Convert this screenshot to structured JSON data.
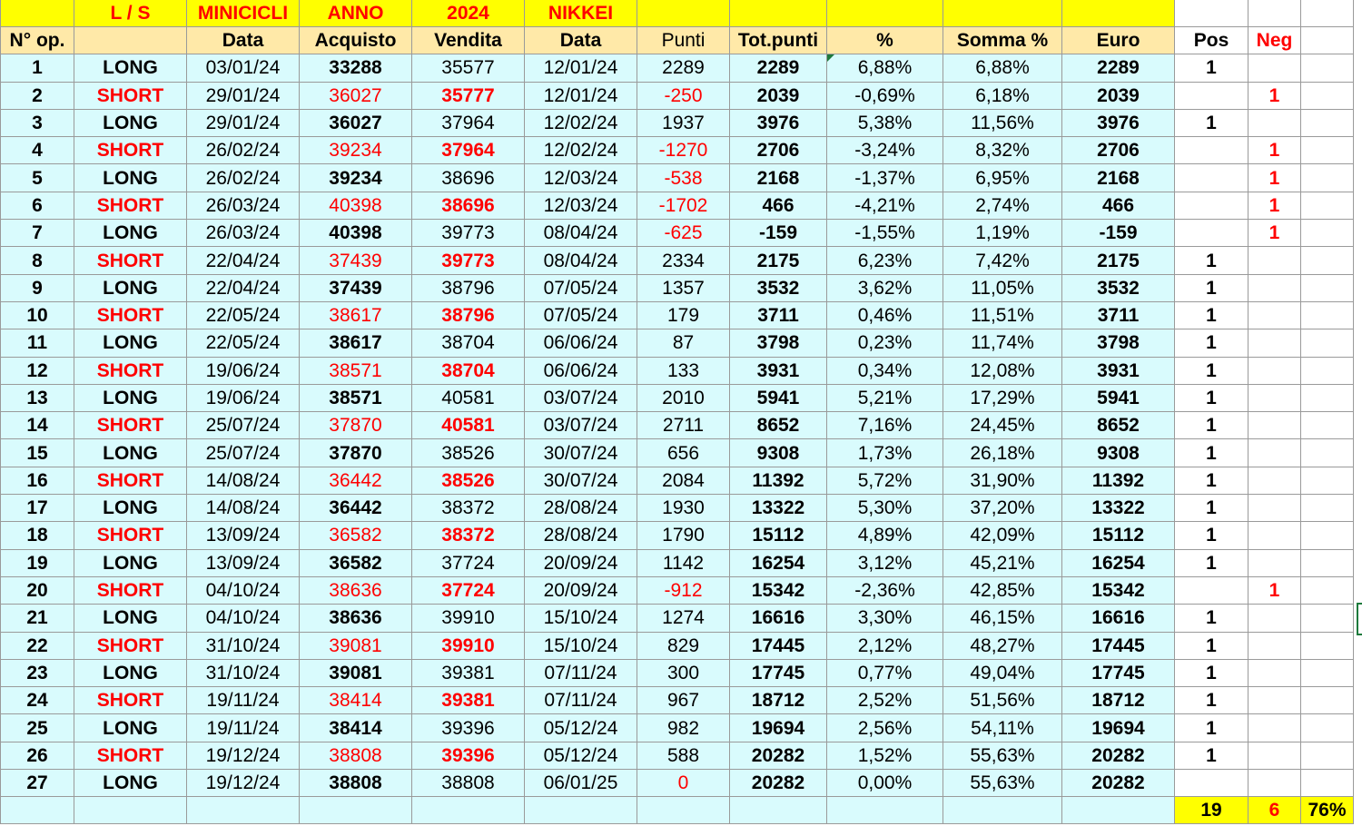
{
  "top_labels": [
    "L / S",
    "MINICICLI",
    "ANNO",
    "2024",
    "NIKKEI"
  ],
  "headers": [
    "N° op.",
    "",
    "Data",
    "Acquisto",
    "Vendita",
    "Data",
    "Punti",
    "Tot.punti",
    "%",
    "Somma %",
    "Euro",
    "Pos",
    "Neg"
  ],
  "rows": [
    [
      "1",
      "LONG",
      "03/01/24",
      "33288",
      "35577",
      "12/01/24",
      "2289",
      "2289",
      "6,88%",
      "6,88%",
      "2289",
      "1",
      ""
    ],
    [
      "2",
      "SHORT",
      "29/01/24",
      "36027",
      "35777",
      "12/01/24",
      "-250",
      "2039",
      "-0,69%",
      "6,18%",
      "2039",
      "",
      "1"
    ],
    [
      "3",
      "LONG",
      "29/01/24",
      "36027",
      "37964",
      "12/02/24",
      "1937",
      "3976",
      "5,38%",
      "11,56%",
      "3976",
      "1",
      ""
    ],
    [
      "4",
      "SHORT",
      "26/02/24",
      "39234",
      "37964",
      "12/02/24",
      "-1270",
      "2706",
      "-3,24%",
      "8,32%",
      "2706",
      "",
      "1"
    ],
    [
      "5",
      "LONG",
      "26/02/24",
      "39234",
      "38696",
      "12/03/24",
      "-538",
      "2168",
      "-1,37%",
      "6,95%",
      "2168",
      "",
      "1"
    ],
    [
      "6",
      "SHORT",
      "26/03/24",
      "40398",
      "38696",
      "12/03/24",
      "-1702",
      "466",
      "-4,21%",
      "2,74%",
      "466",
      "",
      "1"
    ],
    [
      "7",
      "LONG",
      "26/03/24",
      "40398",
      "39773",
      "08/04/24",
      "-625",
      "-159",
      "-1,55%",
      "1,19%",
      "-159",
      "",
      "1"
    ],
    [
      "8",
      "SHORT",
      "22/04/24",
      "37439",
      "39773",
      "08/04/24",
      "2334",
      "2175",
      "6,23%",
      "7,42%",
      "2175",
      "1",
      ""
    ],
    [
      "9",
      "LONG",
      "22/04/24",
      "37439",
      "38796",
      "07/05/24",
      "1357",
      "3532",
      "3,62%",
      "11,05%",
      "3532",
      "1",
      ""
    ],
    [
      "10",
      "SHORT",
      "22/05/24",
      "38617",
      "38796",
      "07/05/24",
      "179",
      "3711",
      "0,46%",
      "11,51%",
      "3711",
      "1",
      ""
    ],
    [
      "11",
      "LONG",
      "22/05/24",
      "38617",
      "38704",
      "06/06/24",
      "87",
      "3798",
      "0,23%",
      "11,74%",
      "3798",
      "1",
      ""
    ],
    [
      "12",
      "SHORT",
      "19/06/24",
      "38571",
      "38704",
      "06/06/24",
      "133",
      "3931",
      "0,34%",
      "12,08%",
      "3931",
      "1",
      ""
    ],
    [
      "13",
      "LONG",
      "19/06/24",
      "38571",
      "40581",
      "03/07/24",
      "2010",
      "5941",
      "5,21%",
      "17,29%",
      "5941",
      "1",
      ""
    ],
    [
      "14",
      "SHORT",
      "25/07/24",
      "37870",
      "40581",
      "03/07/24",
      "2711",
      "8652",
      "7,16%",
      "24,45%",
      "8652",
      "1",
      ""
    ],
    [
      "15",
      "LONG",
      "25/07/24",
      "37870",
      "38526",
      "30/07/24",
      "656",
      "9308",
      "1,73%",
      "26,18%",
      "9308",
      "1",
      ""
    ],
    [
      "16",
      "SHORT",
      "14/08/24",
      "36442",
      "38526",
      "30/07/24",
      "2084",
      "11392",
      "5,72%",
      "31,90%",
      "11392",
      "1",
      ""
    ],
    [
      "17",
      "LONG",
      "14/08/24",
      "36442",
      "38372",
      "28/08/24",
      "1930",
      "13322",
      "5,30%",
      "37,20%",
      "13322",
      "1",
      ""
    ],
    [
      "18",
      "SHORT",
      "13/09/24",
      "36582",
      "38372",
      "28/08/24",
      "1790",
      "15112",
      "4,89%",
      "42,09%",
      "15112",
      "1",
      ""
    ],
    [
      "19",
      "LONG",
      "13/09/24",
      "36582",
      "37724",
      "20/09/24",
      "1142",
      "16254",
      "3,12%",
      "45,21%",
      "16254",
      "1",
      ""
    ],
    [
      "20",
      "SHORT",
      "04/10/24",
      "38636",
      "37724",
      "20/09/24",
      "-912",
      "15342",
      "-2,36%",
      "42,85%",
      "15342",
      "",
      "1"
    ],
    [
      "21",
      "LONG",
      "04/10/24",
      "38636",
      "39910",
      "15/10/24",
      "1274",
      "16616",
      "3,30%",
      "46,15%",
      "16616",
      "1",
      ""
    ],
    [
      "22",
      "SHORT",
      "31/10/24",
      "39081",
      "39910",
      "15/10/24",
      "829",
      "17445",
      "2,12%",
      "48,27%",
      "17445",
      "1",
      ""
    ],
    [
      "23",
      "LONG",
      "31/10/24",
      "39081",
      "39381",
      "07/11/24",
      "300",
      "17745",
      "0,77%",
      "49,04%",
      "17745",
      "1",
      ""
    ],
    [
      "24",
      "SHORT",
      "19/11/24",
      "38414",
      "39381",
      "07/11/24",
      "967",
      "18712",
      "2,52%",
      "51,56%",
      "18712",
      "1",
      ""
    ],
    [
      "25",
      "LONG",
      "19/11/24",
      "38414",
      "39396",
      "05/12/24",
      "982",
      "19694",
      "2,56%",
      "54,11%",
      "19694",
      "1",
      ""
    ],
    [
      "26",
      "SHORT",
      "19/12/24",
      "38808",
      "39396",
      "05/12/24",
      "588",
      "20282",
      "1,52%",
      "55,63%",
      "20282",
      "1",
      ""
    ],
    [
      "27",
      "LONG",
      "19/12/24",
      "38808",
      "38808",
      "06/01/25",
      "0",
      "20282",
      "0,00%",
      "55,63%",
      "20282",
      "",
      ""
    ]
  ],
  "totals": {
    "pos": "19",
    "neg": "6",
    "rate": "76%"
  },
  "colors": {
    "accent_yellow": "#ffff00",
    "header_bg": "#ffe9a8",
    "row_bg": "#d9fbfd",
    "negative_red": "#ff0000",
    "selection_green": "#1e7a3c"
  }
}
